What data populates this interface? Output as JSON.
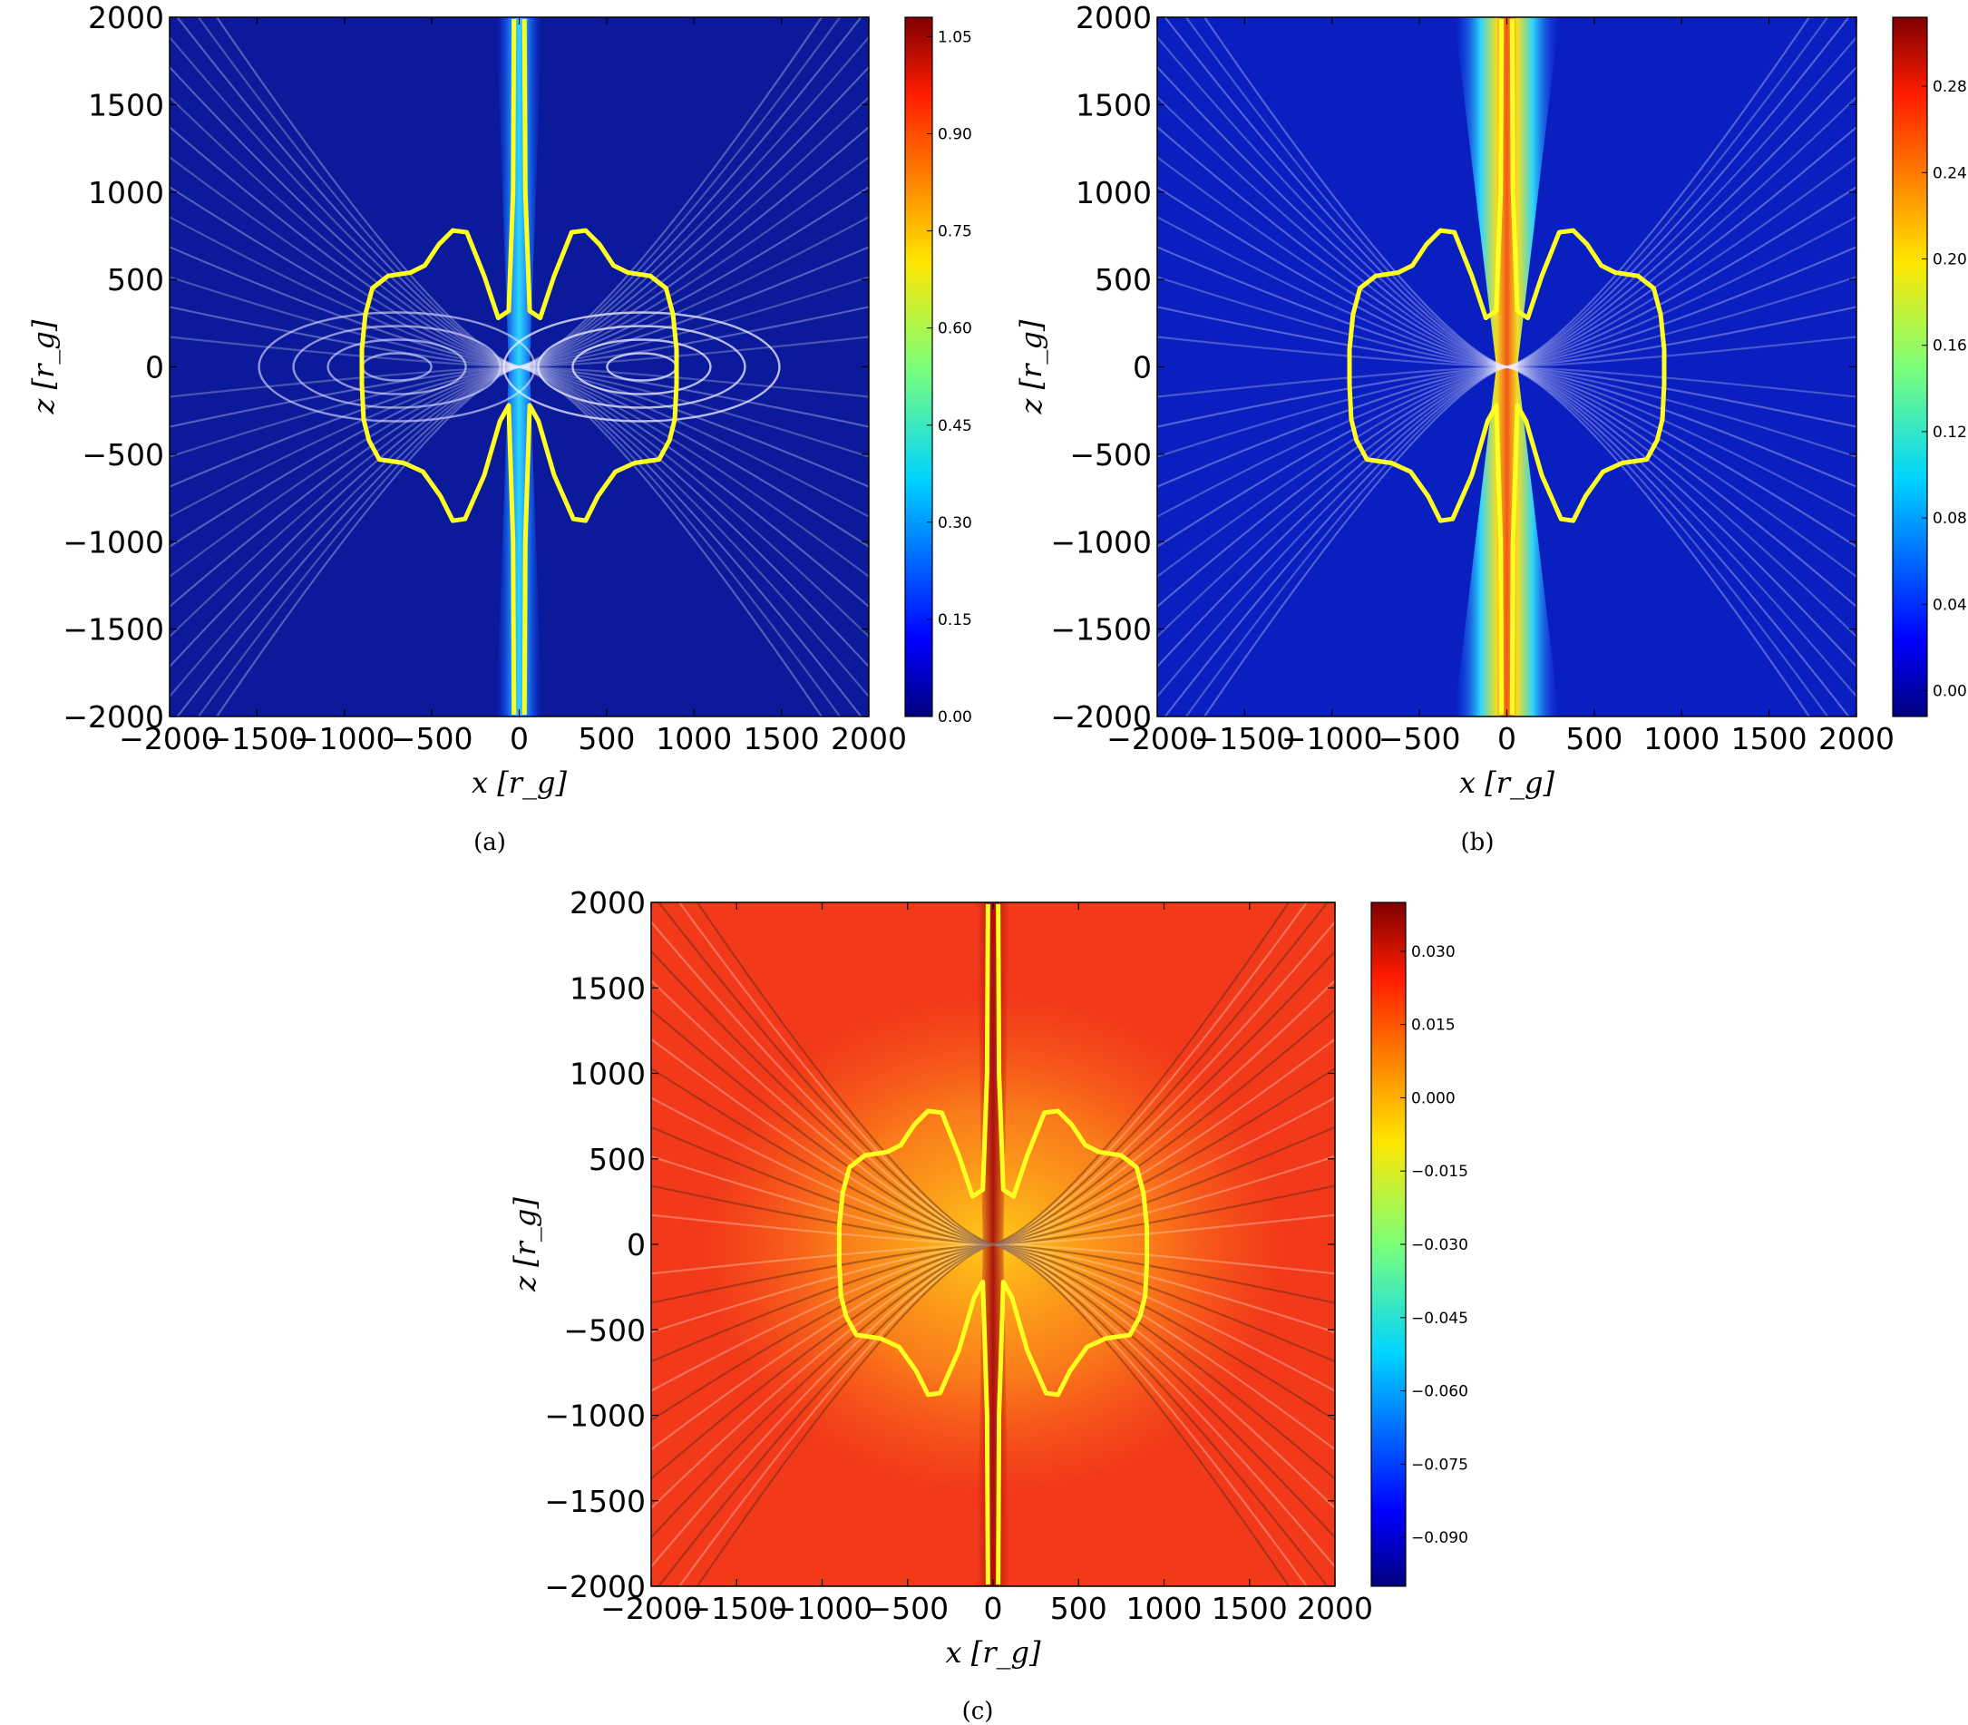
{
  "chart_data": [
    {
      "type": "heatmap",
      "panel_label": "(a)",
      "xlabel": "x [r_g]",
      "ylabel": "z [r_g]",
      "xlim": [
        -2000,
        2000
      ],
      "ylim": [
        -2000,
        2000
      ],
      "xticks": [
        -2000,
        -1500,
        -1000,
        -500,
        0,
        500,
        1000,
        1500,
        2000
      ],
      "yticks": [
        -2000,
        -1500,
        -1000,
        -500,
        0,
        500,
        1000,
        1500,
        2000
      ],
      "colormap": "jet",
      "colorbar_range": [
        0.0,
        1.08
      ],
      "colorbar_ticks": [
        "0.00",
        "0.15",
        "0.30",
        "0.45",
        "0.60",
        "0.75",
        "0.90",
        "1.05"
      ],
      "background_color": "#0a1a9a",
      "jet_color": "#2aa0ff",
      "contour_color": "#ffff22"
    },
    {
      "type": "heatmap",
      "panel_label": "(b)",
      "xlabel": "x [r_g]",
      "ylabel": "z [r_g]",
      "xlim": [
        -2000,
        2000
      ],
      "ylim": [
        -2000,
        2000
      ],
      "xticks": [
        -2000,
        -1500,
        -1000,
        -500,
        0,
        500,
        1000,
        1500,
        2000
      ],
      "yticks": [
        -2000,
        -1500,
        -1000,
        -500,
        0,
        500,
        1000,
        1500,
        2000
      ],
      "colormap": "jet",
      "colorbar_range": [
        -0.012,
        0.312
      ],
      "colorbar_ticks": [
        "0.00",
        "0.04",
        "0.08",
        "0.12",
        "0.16",
        "0.20",
        "0.24",
        "0.28"
      ],
      "background_color": "#0a1fbf",
      "jet_color": "#ff7a10",
      "contour_color": "#ffff22"
    },
    {
      "type": "heatmap",
      "panel_label": "(c)",
      "xlabel": "x [r_g]",
      "ylabel": "z [r_g]",
      "xlim": [
        -2000,
        2000
      ],
      "ylim": [
        -2000,
        2000
      ],
      "xticks": [
        -2000,
        -1500,
        -1000,
        -500,
        0,
        500,
        1000,
        1500,
        2000
      ],
      "yticks": [
        -2000,
        -1500,
        -1000,
        -500,
        0,
        500,
        1000,
        1500,
        2000
      ],
      "colormap": "jet",
      "colorbar_range": [
        -0.1,
        0.04
      ],
      "colorbar_ticks": [
        "−0.090",
        "−0.075",
        "−0.060",
        "−0.045",
        "−0.030",
        "−0.015",
        "0.000",
        "0.015",
        "0.030"
      ],
      "background_color": "#f23a1a",
      "jet_color": "#b01010",
      "contour_color": "#ffff22"
    }
  ]
}
